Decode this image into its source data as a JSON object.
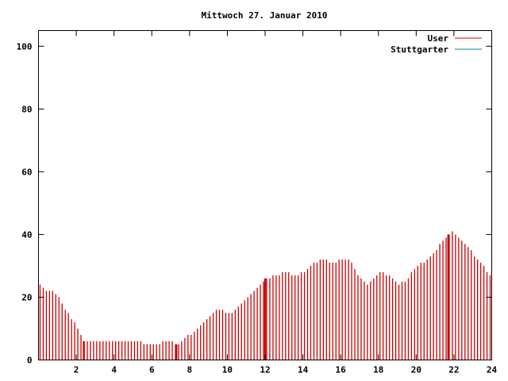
{
  "chart_data": {
    "type": "bar",
    "title": "Mittwoch 27. Januar 2010",
    "xlabel": "",
    "ylabel": "",
    "xlim": [
      0,
      24
    ],
    "ylim": [
      0,
      105
    ],
    "x_ticks": [
      "2",
      "4",
      "6",
      "8",
      "10",
      "12",
      "14",
      "16",
      "18",
      "20",
      "22",
      "24"
    ],
    "y_ticks": [
      "0",
      "20",
      "40",
      "60",
      "80",
      "100"
    ],
    "grid": false,
    "legend_position": "top-right",
    "series": [
      {
        "name": "User",
        "color": "#cc0000",
        "hours": [
          0,
          0.5,
          1,
          1.5,
          2,
          2.2,
          2.4,
          3,
          4,
          5,
          5.5,
          5.6,
          6,
          7,
          7.5,
          8,
          8.5,
          9,
          9.5,
          10,
          10.5,
          11,
          11.5,
          12,
          12.5,
          13,
          13.5,
          14,
          14.5,
          15,
          15.5,
          16,
          16.5,
          17,
          17.5,
          18,
          18.5,
          19,
          19.5,
          20,
          20.5,
          21,
          21.5,
          22,
          22.5,
          23,
          23.5,
          24
        ],
        "values": [
          24,
          22,
          21,
          15,
          12,
          8,
          6,
          6,
          6,
          6,
          6,
          5,
          5,
          6,
          5,
          8,
          10,
          13,
          16,
          15,
          16,
          20,
          22,
          26,
          27,
          28,
          27,
          28,
          31,
          32,
          31,
          32,
          32,
          26,
          24,
          28,
          27,
          24,
          25,
          30,
          31,
          34,
          39,
          41,
          38,
          34,
          31,
          26
        ],
        "highlight_hours": [
          2.4,
          7.3,
          12.0,
          21.7
        ]
      },
      {
        "name": "Stuttgarter",
        "color": "#008b8b",
        "hours": [],
        "values": []
      }
    ]
  }
}
